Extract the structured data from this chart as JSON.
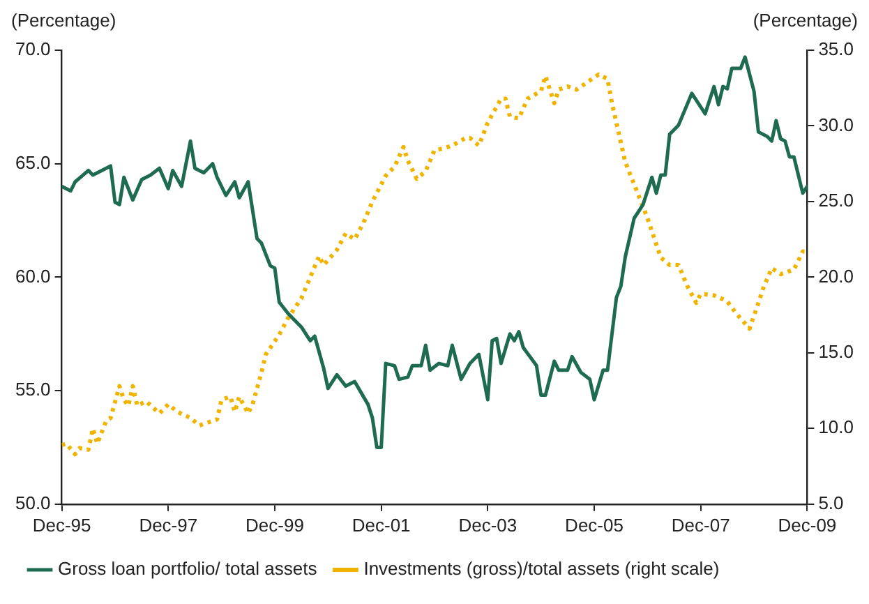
{
  "chart_data": {
    "type": "line",
    "ylabel": "(Percentage)",
    "y2label": "(Percentage)",
    "xlim": [
      "1995-12",
      "2009-12"
    ],
    "xticks": [
      {
        "value": "1995-12",
        "label": "Dec-95"
      },
      {
        "value": "1997-12",
        "label": "Dec-97"
      },
      {
        "value": "1999-12",
        "label": "Dec-99"
      },
      {
        "value": "2001-12",
        "label": "Dec-01"
      },
      {
        "value": "2003-12",
        "label": "Dec-03"
      },
      {
        "value": "2005-12",
        "label": "Dec-05"
      },
      {
        "value": "2007-12",
        "label": "Dec-07"
      },
      {
        "value": "2009-12",
        "label": "Dec-09"
      }
    ],
    "ylim": [
      50,
      70
    ],
    "yticks": [
      {
        "value": 50,
        "label": "50.0"
      },
      {
        "value": 55,
        "label": "55.0"
      },
      {
        "value": 60,
        "label": "60.0"
      },
      {
        "value": 65,
        "label": "65.0"
      },
      {
        "value": 70,
        "label": "70.0"
      }
    ],
    "y2lim": [
      5,
      35
    ],
    "y2ticks": [
      {
        "value": 5,
        "label": "5.0"
      },
      {
        "value": 10,
        "label": "10.0"
      },
      {
        "value": 15,
        "label": "15.0"
      },
      {
        "value": 20,
        "label": "20.0"
      },
      {
        "value": 25,
        "label": "25.0"
      },
      {
        "value": 30,
        "label": "30.0"
      },
      {
        "value": 35,
        "label": "35.0"
      }
    ],
    "grid": false,
    "legend": "bottom",
    "marker": "none",
    "series": [
      {
        "name": "Gross loan portfolio/ total assets",
        "color": "#1e6b52",
        "line_style": "solid",
        "x": [
          "1995-12",
          "1996-02",
          "1996-03",
          "1996-06",
          "1996-07",
          "1996-11",
          "1996-12",
          "1997-01",
          "1997-02",
          "1997-04",
          "1997-06",
          "1997-08",
          "1997-10",
          "1997-12",
          "1998-01",
          "1998-03",
          "1998-05",
          "1998-06",
          "1998-08",
          "1998-10",
          "1998-11",
          "1999-01",
          "1999-03",
          "1999-04",
          "1999-06",
          "1999-08",
          "1999-09",
          "1999-11",
          "1999-12",
          "2000-01",
          "2000-03",
          "2000-06",
          "2000-08",
          "2000-09",
          "2000-11",
          "2000-12",
          "2001-02",
          "2001-04",
          "2001-06",
          "2001-09",
          "2001-10",
          "2001-11",
          "2001-12",
          "2002-01",
          "2002-03",
          "2002-04",
          "2002-06",
          "2002-07",
          "2002-09",
          "2002-10",
          "2002-11",
          "2003-01",
          "2003-03",
          "2003-04",
          "2003-06",
          "2003-08",
          "2003-10",
          "2003-12",
          "2004-01",
          "2004-02",
          "2004-03",
          "2004-05",
          "2004-06",
          "2004-07",
          "2004-08",
          "2004-11",
          "2004-12",
          "2005-01",
          "2005-03",
          "2005-04",
          "2005-06",
          "2005-07",
          "2005-09",
          "2005-11",
          "2005-12",
          "2006-02",
          "2006-03",
          "2006-05",
          "2006-06",
          "2006-07",
          "2006-09",
          "2006-11",
          "2007-01",
          "2007-02",
          "2007-03",
          "2007-04",
          "2007-05",
          "2007-07",
          "2007-10",
          "2008-01",
          "2008-03",
          "2008-04",
          "2008-05",
          "2008-06",
          "2008-07",
          "2008-09",
          "2008-10",
          "2008-12",
          "2009-01",
          "2009-03",
          "2009-04",
          "2009-05",
          "2009-06",
          "2009-07",
          "2009-08",
          "2009-09",
          "2009-11",
          "2009-12"
        ],
        "values": [
          64.0,
          63.8,
          64.2,
          64.7,
          64.5,
          64.9,
          63.3,
          63.2,
          64.4,
          63.4,
          64.3,
          64.5,
          64.8,
          63.9,
          64.7,
          64.0,
          66.0,
          64.8,
          64.6,
          65.0,
          64.4,
          63.6,
          64.2,
          63.5,
          64.2,
          61.7,
          61.5,
          60.5,
          60.4,
          58.9,
          58.4,
          57.8,
          57.2,
          57.4,
          56.0,
          55.1,
          55.7,
          55.2,
          55.4,
          54.4,
          53.8,
          52.5,
          52.5,
          56.2,
          56.1,
          55.5,
          55.6,
          56.1,
          56.1,
          57.0,
          55.9,
          56.2,
          56.1,
          57.0,
          55.5,
          56.2,
          56.6,
          54.6,
          57.2,
          57.3,
          56.2,
          57.5,
          57.2,
          57.6,
          56.9,
          56.1,
          54.8,
          54.8,
          56.3,
          55.9,
          55.9,
          56.5,
          55.8,
          55.5,
          54.6,
          55.9,
          55.9,
          59.1,
          59.6,
          60.9,
          62.6,
          63.2,
          64.4,
          63.7,
          64.5,
          64.5,
          66.3,
          66.7,
          68.1,
          67.2,
          68.4,
          67.6,
          68.4,
          68.3,
          69.2,
          69.2,
          69.7,
          68.2,
          66.4,
          66.2,
          66.0,
          66.9,
          66.1,
          66.0,
          65.3,
          65.3,
          63.7,
          64.0
        ]
      },
      {
        "name": "Investments (gross)/total assets (right scale)",
        "color": "#f0b400",
        "line_style": "dotted",
        "axis": "y2",
        "x": [
          "1995-12",
          "1996-01",
          "1996-03",
          "1996-04",
          "1996-06",
          "1996-07",
          "1996-08",
          "1996-10",
          "1996-11",
          "1997-01",
          "1997-02",
          "1997-03",
          "1997-04",
          "1997-05",
          "1997-07",
          "1997-10",
          "1997-12",
          "1998-02",
          "1998-05",
          "1998-07",
          "1998-11",
          "1998-12",
          "1999-02",
          "1999-03",
          "1999-04",
          "1999-06",
          "1999-07",
          "1999-09",
          "1999-10",
          "2000-01",
          "2000-03",
          "2000-06",
          "2000-08",
          "2000-10",
          "2000-11",
          "2001-02",
          "2001-04",
          "2001-06",
          "2001-08",
          "2001-10",
          "2002-01",
          "2002-03",
          "2002-05",
          "2002-06",
          "2002-08",
          "2002-10",
          "2002-12",
          "2003-02",
          "2003-04",
          "2003-07",
          "2003-08",
          "2003-10",
          "2003-12",
          "2004-03",
          "2004-04",
          "2004-05",
          "2004-07",
          "2004-09",
          "2004-12",
          "2005-01",
          "2005-03",
          "2005-04",
          "2005-06",
          "2005-08",
          "2005-11",
          "2006-01",
          "2006-03",
          "2006-04",
          "2006-05",
          "2006-07",
          "2006-10",
          "2006-12",
          "2007-03",
          "2007-05",
          "2007-07",
          "2007-09",
          "2007-11",
          "2007-12",
          "2008-03",
          "2008-06",
          "2008-08",
          "2008-11",
          "2009-01",
          "2009-02",
          "2009-04",
          "2009-06",
          "2009-09",
          "2009-11",
          "2009-12"
        ],
        "values": [
          8.9,
          9.0,
          8.3,
          8.7,
          8.6,
          10.0,
          9.0,
          10.5,
          10.7,
          12.8,
          11.9,
          11.5,
          12.8,
          11.5,
          11.8,
          11.0,
          11.6,
          11.1,
          10.7,
          10.2,
          10.6,
          11.9,
          12.1,
          11.1,
          12.1,
          11.0,
          11.6,
          13.7,
          14.9,
          16.2,
          17.3,
          18.6,
          20.0,
          21.4,
          20.8,
          21.8,
          22.9,
          22.5,
          23.6,
          25.0,
          26.7,
          27.3,
          28.6,
          27.7,
          26.5,
          27.0,
          28.4,
          28.5,
          28.7,
          29.2,
          29.2,
          28.7,
          30.2,
          31.8,
          31.8,
          30.6,
          30.5,
          31.8,
          32.3,
          33.3,
          31.5,
          32.4,
          32.6,
          32.4,
          33.0,
          33.4,
          33.1,
          31.5,
          30.2,
          27.6,
          25.4,
          23.9,
          21.3,
          20.8,
          20.8,
          19.4,
          18.3,
          18.9,
          18.8,
          18.4,
          17.6,
          16.6,
          18.3,
          19.2,
          20.6,
          20.2,
          20.5,
          21.7,
          21.7
        ]
      }
    ]
  }
}
